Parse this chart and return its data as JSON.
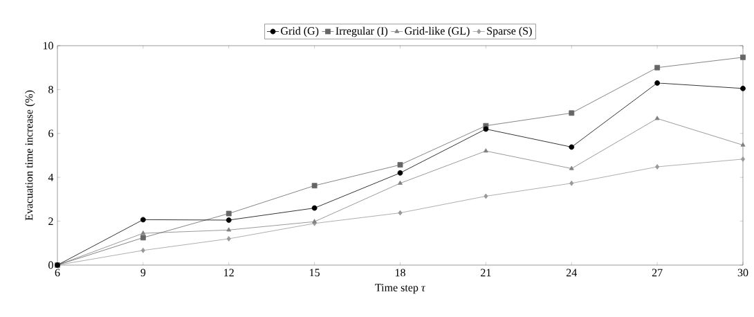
{
  "chart_data": {
    "type": "line",
    "xlabel": "Time step *τ*",
    "ylabel": "Evacuation time increase (%)",
    "x": [
      6,
      9,
      12,
      15,
      18,
      21,
      24,
      27,
      30
    ],
    "series": [
      {
        "name": "Grid (G)",
        "color": "#000000",
        "marker": "circle",
        "values": [
          0,
          2.07,
          2.05,
          2.6,
          4.2,
          6.2,
          5.38,
          8.3,
          8.05
        ]
      },
      {
        "name": "Irregular (I)",
        "color": "#666666",
        "marker": "square",
        "values": [
          0,
          1.25,
          2.35,
          3.62,
          4.57,
          6.35,
          6.93,
          9.0,
          9.47
        ]
      },
      {
        "name": "Grid-like (GL)",
        "color": "#808080",
        "marker": "triangle",
        "values": [
          0,
          1.45,
          1.6,
          1.98,
          3.73,
          5.2,
          4.4,
          6.68,
          5.47
        ]
      },
      {
        "name": "Sparse (S)",
        "color": "#999999",
        "marker": "diamond",
        "values": [
          0,
          0.67,
          1.2,
          1.9,
          2.38,
          3.14,
          3.73,
          4.48,
          4.83
        ]
      }
    ],
    "xlim": [
      6,
      30
    ],
    "xticks": [
      6,
      9,
      12,
      15,
      18,
      21,
      24,
      27,
      30
    ],
    "ylim": [
      0,
      10
    ],
    "yticks": [
      0,
      2,
      4,
      6,
      8,
      10
    ],
    "grid": false,
    "legend": "top",
    "line_style": "solid"
  }
}
